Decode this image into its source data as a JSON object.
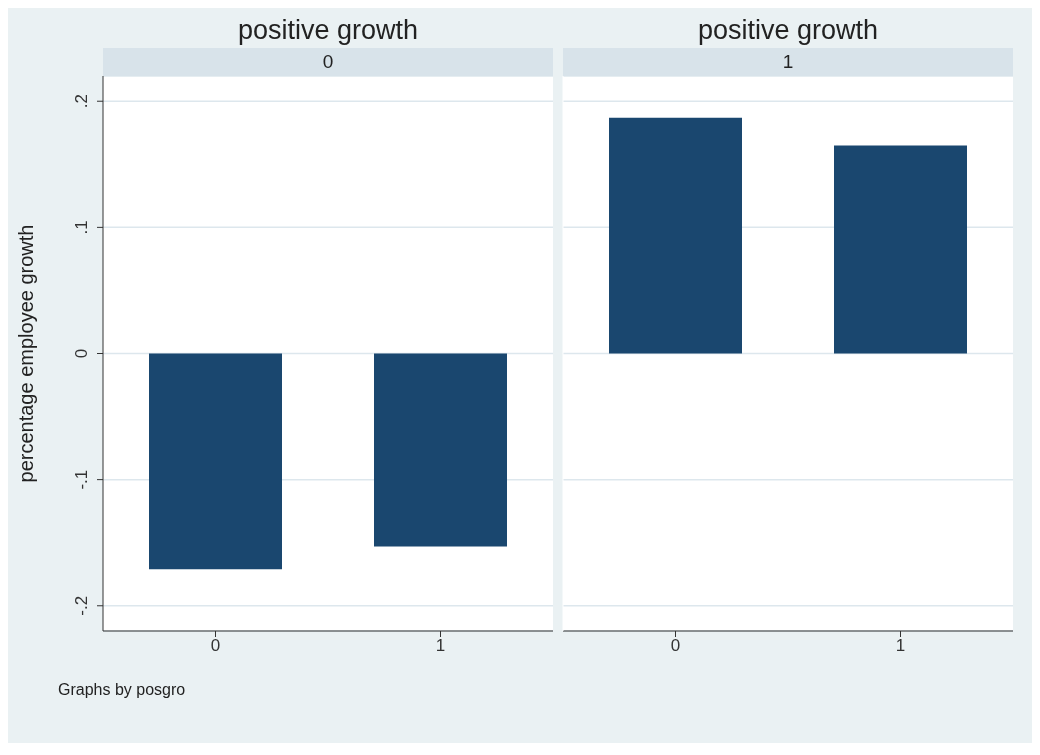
{
  "chart_data": [
    {
      "type": "bar",
      "title": "positive growth",
      "subtitle": "0",
      "categories": [
        "0",
        "1"
      ],
      "values": [
        -0.171,
        -0.153
      ],
      "color": "#1a476f",
      "ylabel": "percentage employee growth",
      "ylim": [
        -0.22,
        0.22
      ],
      "yticks": [
        {
          "value": -0.2,
          "label": "-.2"
        },
        {
          "value": -0.1,
          "label": "-.1"
        },
        0,
        {
          "value": 0.1,
          "label": ".1"
        },
        {
          "value": 0.2,
          "label": ".2"
        }
      ],
      "grid": "y",
      "annotations": [
        "Graphs by posgro"
      ]
    },
    {
      "type": "bar",
      "title": "positive growth",
      "subtitle": "1",
      "categories": [
        "0",
        "1"
      ],
      "values": [
        0.187,
        0.165
      ],
      "color": "#1a476f",
      "ylim": [
        -0.22,
        0.22
      ],
      "yticks": [
        {
          "value": -0.2,
          "label": null
        },
        {
          "value": -0.1,
          "label": null
        },
        {
          "value": 0,
          "label": null
        },
        {
          "value": 0.1,
          "label": null
        },
        {
          "value": 0.2,
          "label": null
        }
      ],
      "grid": "y",
      "tick_labels": "x"
    }
  ]
}
